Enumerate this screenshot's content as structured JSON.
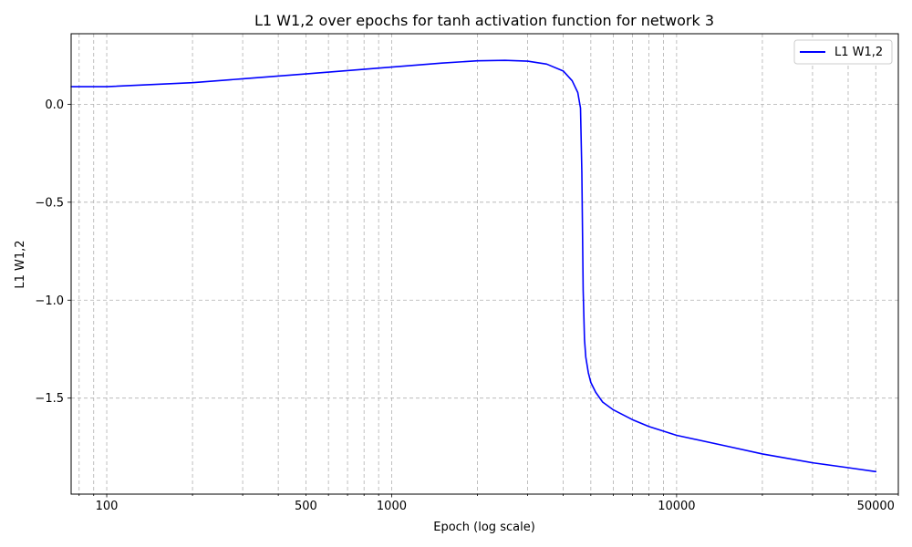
{
  "chart_data": {
    "type": "line",
    "title": "L1 W1,2 over epochs for tanh activation function for network 3",
    "xlabel": "Epoch (log scale)",
    "ylabel": "L1 W1,2",
    "x_scale": "log",
    "xlim": [
      75,
      60000
    ],
    "ylim": [
      -1.99,
      0.36
    ],
    "x_ticks": [
      100,
      500,
      1000,
      10000,
      50000
    ],
    "x_tick_labels": [
      "100",
      "500",
      "1000",
      "10000",
      "50000"
    ],
    "y_ticks": [
      0.0,
      -0.5,
      -1.0,
      -1.5
    ],
    "y_tick_labels": [
      "0.0",
      "−0.5",
      "−1.0",
      "−1.5"
    ],
    "grid": true,
    "legend_position": "top-right",
    "series": [
      {
        "name": "L1 W1,2",
        "color": "#0000ff",
        "x": [
          75,
          100,
          200,
          300,
          500,
          700,
          1000,
          1500,
          2000,
          2500,
          3000,
          3500,
          4000,
          4300,
          4500,
          4600,
          4650,
          4700,
          4750,
          4800,
          4900,
          5000,
          5200,
          5500,
          6000,
          7000,
          8000,
          10000,
          15000,
          20000,
          30000,
          40000,
          50000
        ],
        "y": [
          0.09,
          0.09,
          0.11,
          0.13,
          0.155,
          0.172,
          0.19,
          0.21,
          0.222,
          0.224,
          0.22,
          0.205,
          0.17,
          0.12,
          0.06,
          -0.02,
          -0.35,
          -0.95,
          -1.2,
          -1.29,
          -1.37,
          -1.42,
          -1.47,
          -1.52,
          -1.56,
          -1.61,
          -1.645,
          -1.69,
          -1.745,
          -1.785,
          -1.83,
          -1.855,
          -1.875
        ]
      }
    ]
  }
}
